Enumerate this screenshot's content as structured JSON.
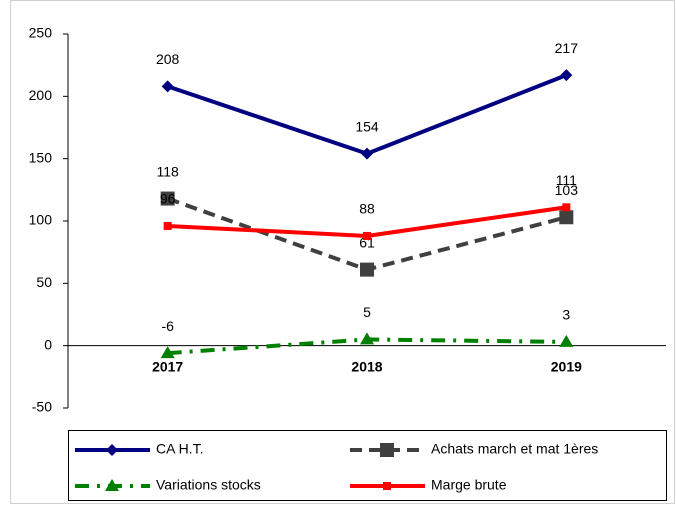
{
  "chart_data": {
    "type": "line",
    "categories": [
      "2017",
      "2018",
      "2019"
    ],
    "series": [
      {
        "name": "CA H.T.",
        "color": "#000080",
        "marker": "diamond",
        "dash": "solid",
        "values": [
          208,
          154,
          217
        ]
      },
      {
        "name": "Achats march et mat 1ères",
        "color": "#404040",
        "marker": "square",
        "dash": "dashed",
        "values": [
          118,
          61,
          103
        ]
      },
      {
        "name": "Variations stocks",
        "color": "#008000",
        "marker": "triangle",
        "dash": "dashdot",
        "values": [
          -6,
          5,
          3
        ]
      },
      {
        "name": "Marge brute",
        "color": "#ff0000",
        "marker": "smallsquare",
        "dash": "solid",
        "values": [
          96,
          88,
          111
        ]
      }
    ],
    "ylim": [
      -50,
      250
    ],
    "yticks": [
      -50,
      0,
      50,
      100,
      150,
      200,
      250
    ],
    "grid": false,
    "legend": "bottom"
  }
}
